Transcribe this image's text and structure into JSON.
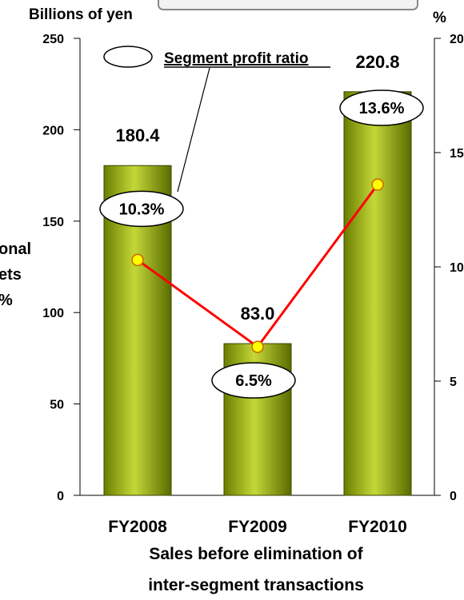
{
  "chart_data": {
    "type": "bar",
    "categories": [
      "FY2008",
      "FY2009",
      "FY2010"
    ],
    "series": [
      {
        "values": [
          180.4,
          83.0,
          220.8
        ],
        "data_labels": [
          "180.4",
          "83.0",
          "220.8"
        ]
      },
      {
        "name": "Segment profit ratio",
        "values": [
          10.3,
          6.5,
          13.6
        ],
        "data_labels": [
          "10.3%",
          "6.5%",
          "13.6%"
        ]
      }
    ],
    "left_axis": {
      "label": "Billions of yen",
      "ylim": [
        0,
        250
      ],
      "ticks": [
        "0",
        "50",
        "100",
        "150",
        "200",
        "250"
      ]
    },
    "right_axis": {
      "label": "%",
      "ylim": [
        0,
        20
      ],
      "ticks": [
        "0",
        "5",
        "10",
        "15",
        "20"
      ]
    },
    "xlabel_lines": [
      "Sales before elimination of",
      "inter-segment transactions"
    ],
    "side_fragment_lines": [
      "onal",
      "ets",
      "%"
    ],
    "legend": {
      "label": "Segment profit ratio",
      "position": "top-center"
    },
    "colors": {
      "bar": "#8aa200",
      "bar_light": "#c4d838",
      "bar_dark": "#5a6b00",
      "line": "#ff0000",
      "marker_fill": "#ffff00",
      "marker_stroke": "#cc6600"
    }
  }
}
